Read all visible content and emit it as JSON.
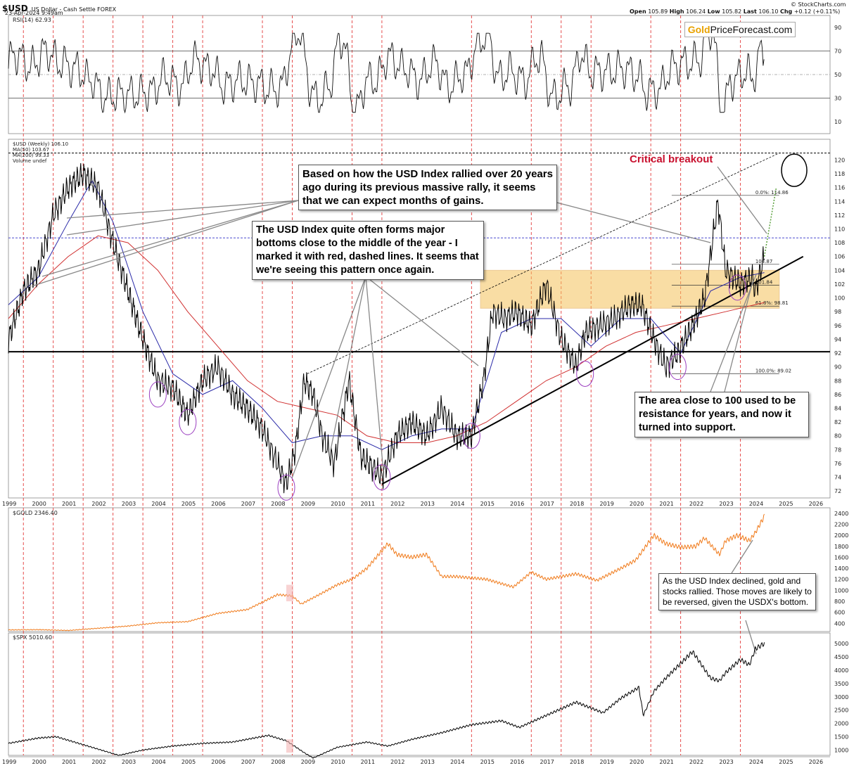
{
  "header": {
    "symbol": "$USD",
    "name": "US Dollar - Cash Settle FOREX",
    "date": "23-Apr-2024 9:49am",
    "open_label": "Open",
    "open": "105.89",
    "high_label": "High",
    "high": "106.24",
    "low_label": "Low",
    "low": "105.82",
    "last_label": "Last",
    "last": "106.10",
    "chg_label": "Chg",
    "chg": "+0.12 (+0.11%)",
    "credit": "© StockCharts.com"
  },
  "logo": {
    "part1": "Gold",
    "part2": "PriceForecast.com"
  },
  "chart_data": [
    {
      "type": "line",
      "name": "rsi-panel",
      "legend": "RSI(14) 62.93",
      "ylim": [
        0,
        100
      ],
      "yticks": [
        "90",
        "70",
        "50",
        "30",
        "10"
      ],
      "levels": [
        70,
        50,
        30
      ],
      "last_value": 62.93
    },
    {
      "type": "line",
      "name": "usd-panel",
      "legend": [
        "$USD (Weekly) 106.10",
        "MA(50) 103.67",
        "MA(200) 99.33",
        "Volume undef"
      ],
      "ylim": [
        71,
        123
      ],
      "yticks": [
        "120",
        "118",
        "116",
        "114",
        "112",
        "110",
        "108",
        "106",
        "104",
        "102",
        "100",
        "98",
        "96",
        "94",
        "92",
        "90",
        "88",
        "86",
        "84",
        "82",
        "80",
        "78",
        "76",
        "74",
        "72"
      ],
      "xticks": [
        "1999",
        "2000",
        "2001",
        "2002",
        "2003",
        "2004",
        "2005",
        "2006",
        "2007",
        "2008",
        "2009",
        "2010",
        "2011",
        "2012",
        "2013",
        "2014",
        "2015",
        "2016",
        "2017",
        "2018",
        "2019",
        "2020",
        "2021",
        "2022",
        "2023",
        "2024",
        "2025",
        "2026"
      ],
      "series": [
        {
          "name": "$USD (Weekly)",
          "x": [
            1999.0,
            1999.5,
            2000.0,
            2000.5,
            2001.0,
            2001.5,
            2002.0,
            2002.5,
            2003.0,
            2003.5,
            2004.0,
            2004.5,
            2005.0,
            2005.5,
            2006.0,
            2006.5,
            2007.0,
            2007.5,
            2008.0,
            2008.3,
            2008.6,
            2008.9,
            2009.2,
            2009.5,
            2009.9,
            2010.4,
            2010.8,
            2011.3,
            2011.5,
            2012.0,
            2012.5,
            2013.0,
            2013.5,
            2014.0,
            2014.5,
            2014.9,
            2015.2,
            2015.6,
            2016.0,
            2016.5,
            2017.0,
            2017.5,
            2018.0,
            2018.3,
            2018.8,
            2019.3,
            2019.8,
            2020.2,
            2020.6,
            2021.0,
            2021.4,
            2021.9,
            2022.3,
            2022.75,
            2023.0,
            2023.5,
            2023.9,
            2024.0,
            2024.3
          ],
          "values": [
            94,
            101,
            104,
            112,
            116,
            118,
            116,
            108,
            101,
            94,
            88,
            87,
            83,
            88,
            90,
            86,
            84,
            81,
            76,
            73,
            78,
            88,
            86,
            80,
            76,
            88,
            77,
            75,
            74,
            80,
            82,
            80,
            84,
            80,
            80,
            88,
            98,
            97,
            98,
            96,
            102,
            94,
            90,
            95,
            96,
            97,
            99,
            99,
            94,
            90,
            92,
            96,
            100,
            114,
            104,
            102,
            103,
            101,
            106.1
          ]
        },
        {
          "name": "MA(50)",
          "x": [
            1999.0,
            2000.0,
            2001.0,
            2001.8,
            2002.5,
            2003.5,
            2004.5,
            2005.5,
            2006.5,
            2007.5,
            2008.5,
            2009.5,
            2010.5,
            2011.5,
            2012.5,
            2013.5,
            2014.5,
            2015.5,
            2016.5,
            2017.5,
            2018.5,
            2019.5,
            2020.5,
            2021.5,
            2022.5,
            2023.5,
            2024.3
          ],
          "values": [
            99,
            103,
            111,
            117,
            111,
            98,
            89,
            86,
            88,
            84,
            79,
            80,
            80,
            78,
            80,
            81,
            81,
            95,
            97,
            97,
            93,
            97,
            97,
            92,
            101,
            103,
            103.67
          ]
        },
        {
          "name": "MA(200)",
          "x": [
            1999.0,
            2000.0,
            2001.0,
            2002.0,
            2003.0,
            2004.0,
            2005.0,
            2006.0,
            2007.0,
            2008.0,
            2009.0,
            2010.0,
            2011.0,
            2012.0,
            2013.0,
            2014.0,
            2015.0,
            2016.0,
            2017.0,
            2018.0,
            2019.0,
            2020.0,
            2021.0,
            2022.0,
            2023.0,
            2024.3
          ],
          "values": [
            97,
            102,
            106,
            109,
            108,
            104,
            98,
            93,
            88,
            85,
            84,
            83,
            80,
            79,
            79,
            80,
            82,
            85,
            88,
            90,
            93,
            95,
            96,
            97,
            98,
            99.33
          ]
        }
      ],
      "reference_lines": [
        {
          "label": "dashed-top",
          "y": 121.0
        },
        {
          "label": "blue-dashed",
          "y": 108.7
        },
        {
          "label": "black-horizontal",
          "y": 92.2
        }
      ],
      "fib_levels": [
        {
          "label": "0.0%: 114.86",
          "y": 114.86
        },
        {
          "label": "104.87",
          "y": 104.87
        },
        {
          "label": "101.84",
          "y": 101.84
        },
        {
          "label": "61.8%: 98.81",
          "y": 98.81
        },
        {
          "label": "100.0%: 89.02",
          "y": 89.02
        }
      ],
      "support_zone": {
        "ymin": 98.5,
        "ymax": 104.0,
        "xmin": 2014.8,
        "xmax": 2024.8
      }
    },
    {
      "type": "line",
      "name": "gold-panel",
      "legend": "$GOLD 2346.40",
      "ylim": [
        250,
        2500
      ],
      "yticks": [
        "2400",
        "2200",
        "2000",
        "1800",
        "1600",
        "1400",
        "1200",
        "1000",
        "800",
        "600",
        "400"
      ],
      "series": [
        {
          "name": "$GOLD",
          "x": [
            1999.0,
            2000.0,
            2001.0,
            2002.0,
            2003.0,
            2004.0,
            2005.0,
            2006.0,
            2007.0,
            2008.0,
            2008.5,
            2008.8,
            2009.5,
            2010.0,
            2010.5,
            2011.0,
            2011.7,
            2012.0,
            2012.5,
            2013.0,
            2013.5,
            2014.0,
            2015.0,
            2015.9,
            2016.5,
            2017.0,
            2018.0,
            2018.7,
            2019.5,
            2020.0,
            2020.6,
            2021.0,
            2021.5,
            2022.0,
            2022.3,
            2022.8,
            2023.0,
            2023.4,
            2023.8,
            2024.0,
            2024.3
          ],
          "values": [
            280,
            285,
            270,
            310,
            350,
            410,
            430,
            580,
            650,
            920,
            900,
            750,
            950,
            1100,
            1200,
            1400,
            1850,
            1650,
            1600,
            1650,
            1250,
            1250,
            1200,
            1060,
            1330,
            1200,
            1300,
            1180,
            1400,
            1550,
            2000,
            1850,
            1780,
            1800,
            1950,
            1650,
            1900,
            2000,
            1900,
            2050,
            2346.4
          ]
        }
      ]
    },
    {
      "type": "line",
      "name": "spx-panel",
      "legend": "$SPX 5010.60",
      "ylim": [
        800,
        5400
      ],
      "yticks": [
        "5000",
        "4500",
        "4000",
        "3500",
        "3000",
        "2500",
        "2000",
        "1500",
        "1000"
      ],
      "series": [
        {
          "name": "$SPX",
          "x": [
            1999.0,
            2000.0,
            2000.6,
            2001.5,
            2002.7,
            2003.5,
            2004.5,
            2005.5,
            2006.5,
            2007.7,
            2008.3,
            2008.9,
            2009.2,
            2010.0,
            2011.0,
            2011.7,
            2012.5,
            2013.5,
            2014.5,
            2015.5,
            2016.1,
            2017.0,
            2018.0,
            2018.9,
            2019.5,
            2020.1,
            2020.25,
            2020.6,
            2021.0,
            2021.9,
            2022.5,
            2022.8,
            2023.0,
            2023.5,
            2023.8,
            2024.0,
            2024.3
          ],
          "values": [
            1250,
            1450,
            1500,
            1200,
            800,
            1000,
            1150,
            1250,
            1300,
            1550,
            1350,
            900,
            700,
            1100,
            1300,
            1150,
            1400,
            1650,
            1950,
            2100,
            1850,
            2300,
            2800,
            2400,
            2950,
            3350,
            2300,
            3200,
            3700,
            4700,
            3700,
            3600,
            3900,
            4400,
            4200,
            4800,
            5010.6
          ]
        }
      ]
    }
  ],
  "annotations": {
    "rally": "Based on how the USD Index rallied over 20 years ago during its previous massive rally, it seems that we can expect months of gains.",
    "bottoms": "The USD Index quite often forms major bottoms close to the middle of the year - I marked it with red, dashed lines. It seems that we're seeing this pattern once again.",
    "support": "The area close to 100 used to be resistance for years, and now it turned into support.",
    "critical": "Critical breakout",
    "gold_stocks": "As the USD Index declined, gold and stocks rallied. Those moves are likely to be reversed, given the USDX's bottom."
  },
  "red_dashed_years": [
    1999.5,
    2000.5,
    2001.5,
    2002.5,
    2003.5,
    2004.5,
    2005.5,
    2007.5,
    2008.5,
    2010.5,
    2011.5,
    2014.5,
    2016.5,
    2017.5,
    2018.5,
    2020.5,
    2021.5,
    2023.5
  ],
  "colors": {
    "rsi_overbought_fill": "#3a7a3a",
    "rsi_oversold_fill": "#c0392b",
    "usd_line": "#000000",
    "ma50": "#2a2aa8",
    "ma200": "#d03030",
    "gold_line": "#f07a1a",
    "spx_line": "#000000",
    "red_dashed": "#e33a3a",
    "support_zone": "#f5c25a",
    "critical_text": "#c8102e"
  }
}
